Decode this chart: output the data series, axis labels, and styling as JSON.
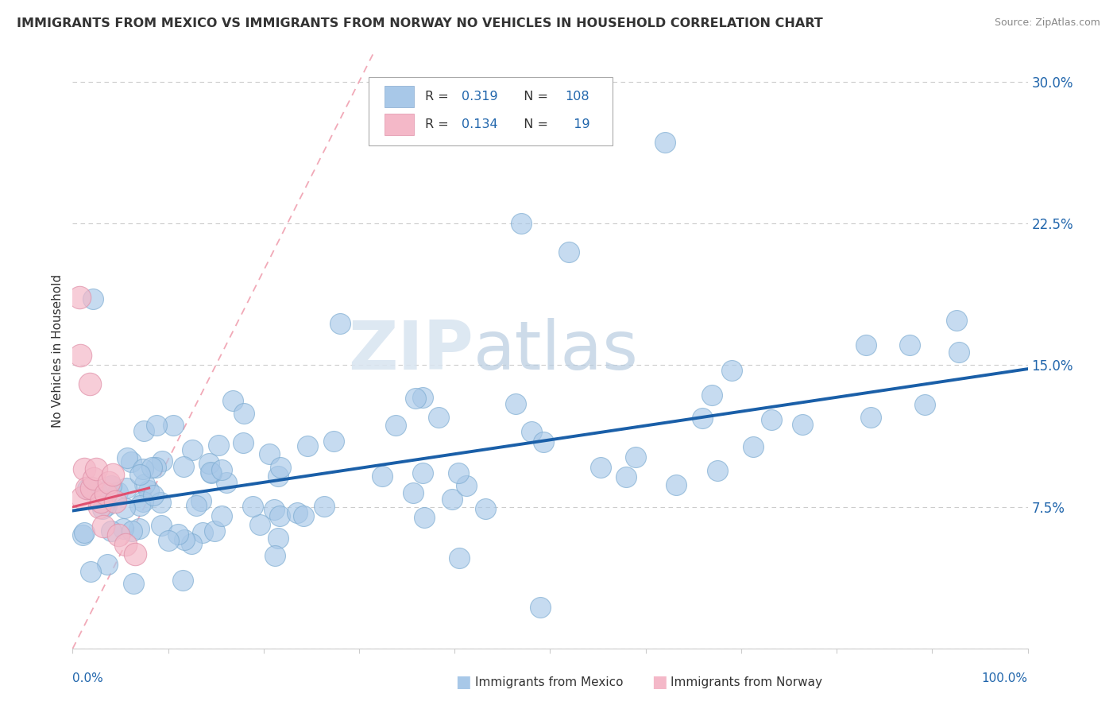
{
  "title": "IMMIGRANTS FROM MEXICO VS IMMIGRANTS FROM NORWAY NO VEHICLES IN HOUSEHOLD CORRELATION CHART",
  "source": "Source: ZipAtlas.com",
  "ylabel": "No Vehicles in Household",
  "right_yticklabels": [
    "",
    "7.5%",
    "15.0%",
    "22.5%",
    "30.0%"
  ],
  "right_ytick_vals": [
    0.0,
    0.075,
    0.15,
    0.225,
    0.3
  ],
  "watermark_zip": "ZIP",
  "watermark_atlas": "atlas",
  "mexico_color": "#a8c8e8",
  "norway_color": "#f4b8c8",
  "mexico_trend_color": "#1a5fa8",
  "norway_trend_color": "#e05070",
  "diagonal_color": "#f0a0b0",
  "grid_color": "#cccccc",
  "xlim": [
    0.0,
    1.0
  ],
  "ylim": [
    0.0,
    0.315
  ],
  "legend_rect1_color": "#a8c8e8",
  "legend_rect2_color": "#f4b8c8",
  "legend_border_color": "#aaaaaa",
  "background_color": "#ffffff",
  "title_color": "#333333",
  "source_color": "#888888",
  "axis_label_color": "#2166ac",
  "ylabel_color": "#333333"
}
